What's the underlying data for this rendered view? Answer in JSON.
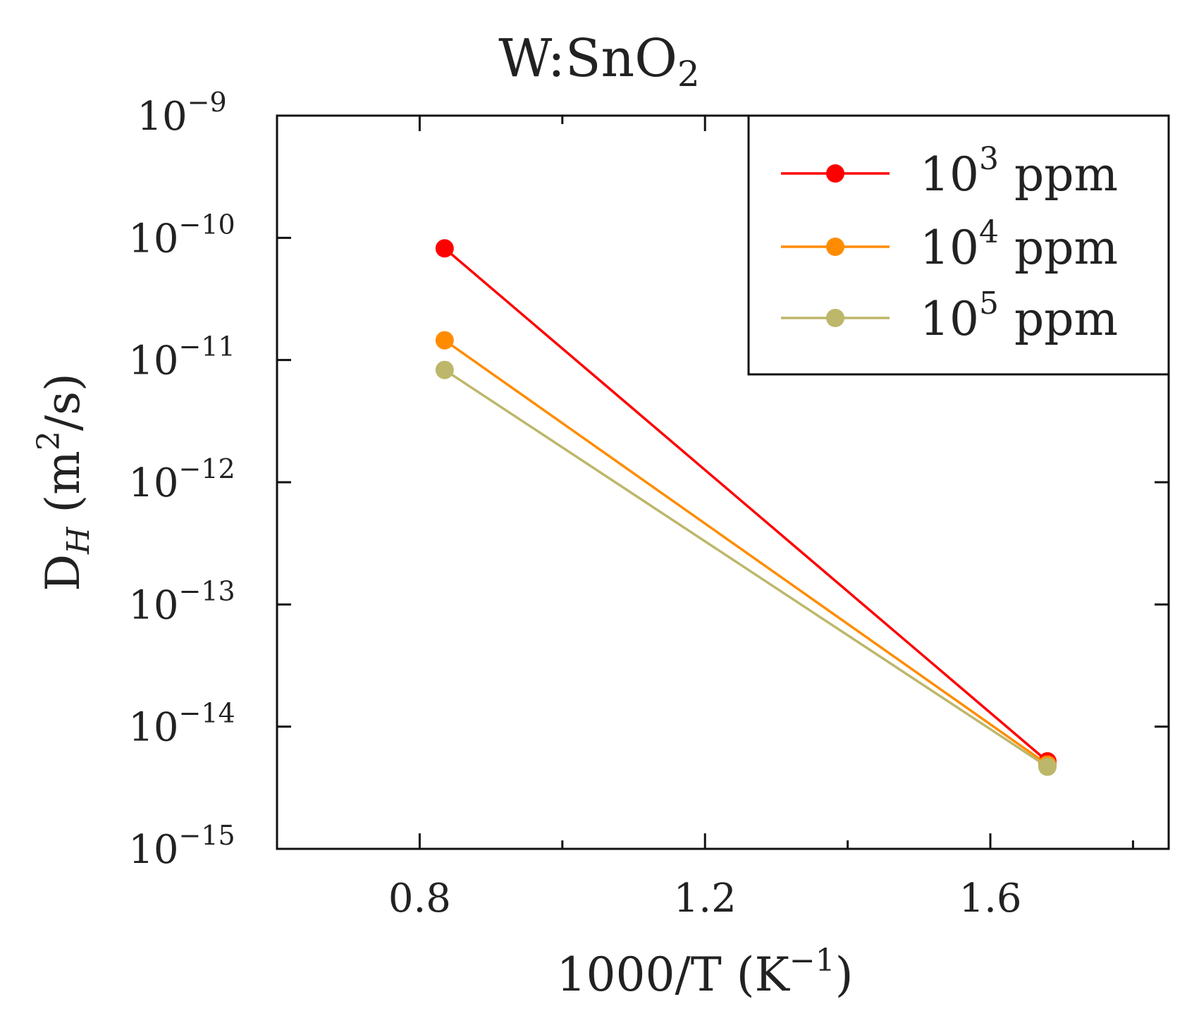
{
  "chart_data": {
    "type": "line",
    "title_main": "W:SnO",
    "title_sub": "2",
    "xlabel": "1000/T (K",
    "xlabel_sup": "−1",
    "xlabel_end": ")",
    "ylabel_main": "D",
    "ylabel_sub": "H",
    "ylabel_units": "(m",
    "ylabel_units_sup": "2",
    "ylabel_units_end": "/s)",
    "xlim": [
      0.6,
      1.85
    ],
    "ylim_exp": [
      -15,
      -9
    ],
    "yscale": "log",
    "x_ticks": [
      0.8,
      1.2,
      1.6
    ],
    "x_tick_labels": [
      "0.8",
      "1.2",
      "1.6"
    ],
    "x_minor_ticks": [
      1.0,
      1.4,
      1.8
    ],
    "y_ticks_exp": [
      -15,
      -14,
      -13,
      -12,
      -11,
      -10,
      -9
    ],
    "y_tick_base": "10",
    "y_tick_sups": [
      "−15",
      "−14",
      "−13",
      "−12",
      "−11",
      "−10",
      "−9"
    ],
    "grid": false,
    "legend_placement": "top-right",
    "series": [
      {
        "name_base": "10",
        "name_sup": "3",
        "name_unit": "ppm",
        "color": "#ff0000",
        "x": [
          0.835,
          1.68
        ],
        "y": [
          8.2e-11,
          5.2e-15
        ]
      },
      {
        "name_base": "10",
        "name_sup": "4",
        "name_unit": "ppm",
        "color": "#ff8c00",
        "x": [
          0.835,
          1.68
        ],
        "y": [
          1.45e-11,
          4.9e-15
        ]
      },
      {
        "name_base": "10",
        "name_sup": "5",
        "name_unit": "ppm",
        "color": "#bdb76b",
        "x": [
          0.835,
          1.68
        ],
        "y": [
          8.3e-12,
          4.7e-15
        ]
      }
    ]
  }
}
